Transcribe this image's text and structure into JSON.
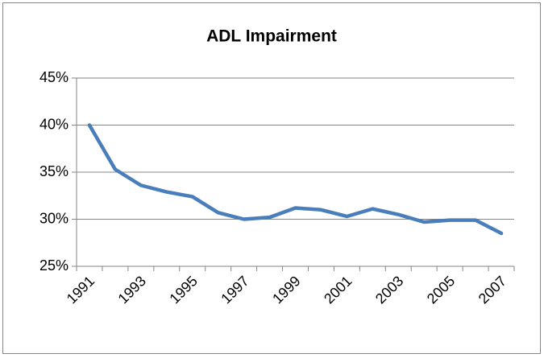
{
  "chart_data": {
    "type": "line",
    "title": "ADL Impairment",
    "categories": [
      "1991",
      null,
      "1993",
      null,
      "1995",
      null,
      "1997",
      null,
      "1999",
      null,
      "2001",
      null,
      "2003",
      null,
      "2005",
      null,
      "2007"
    ],
    "values": [
      40.0,
      35.3,
      33.6,
      32.9,
      32.4,
      30.7,
      30.0,
      30.2,
      31.2,
      31.0,
      30.3,
      31.1,
      30.5,
      29.7,
      29.9,
      29.9,
      28.5
    ],
    "color": "#4a7ebb",
    "ylim": [
      25,
      45
    ],
    "yticks": [
      {
        "value": 25,
        "label": "25%"
      },
      {
        "value": 30,
        "label": "30%"
      },
      {
        "value": 35,
        "label": "35%"
      },
      {
        "value": 40,
        "label": "40%"
      },
      {
        "value": 45,
        "label": "45%"
      }
    ],
    "grid": true
  }
}
